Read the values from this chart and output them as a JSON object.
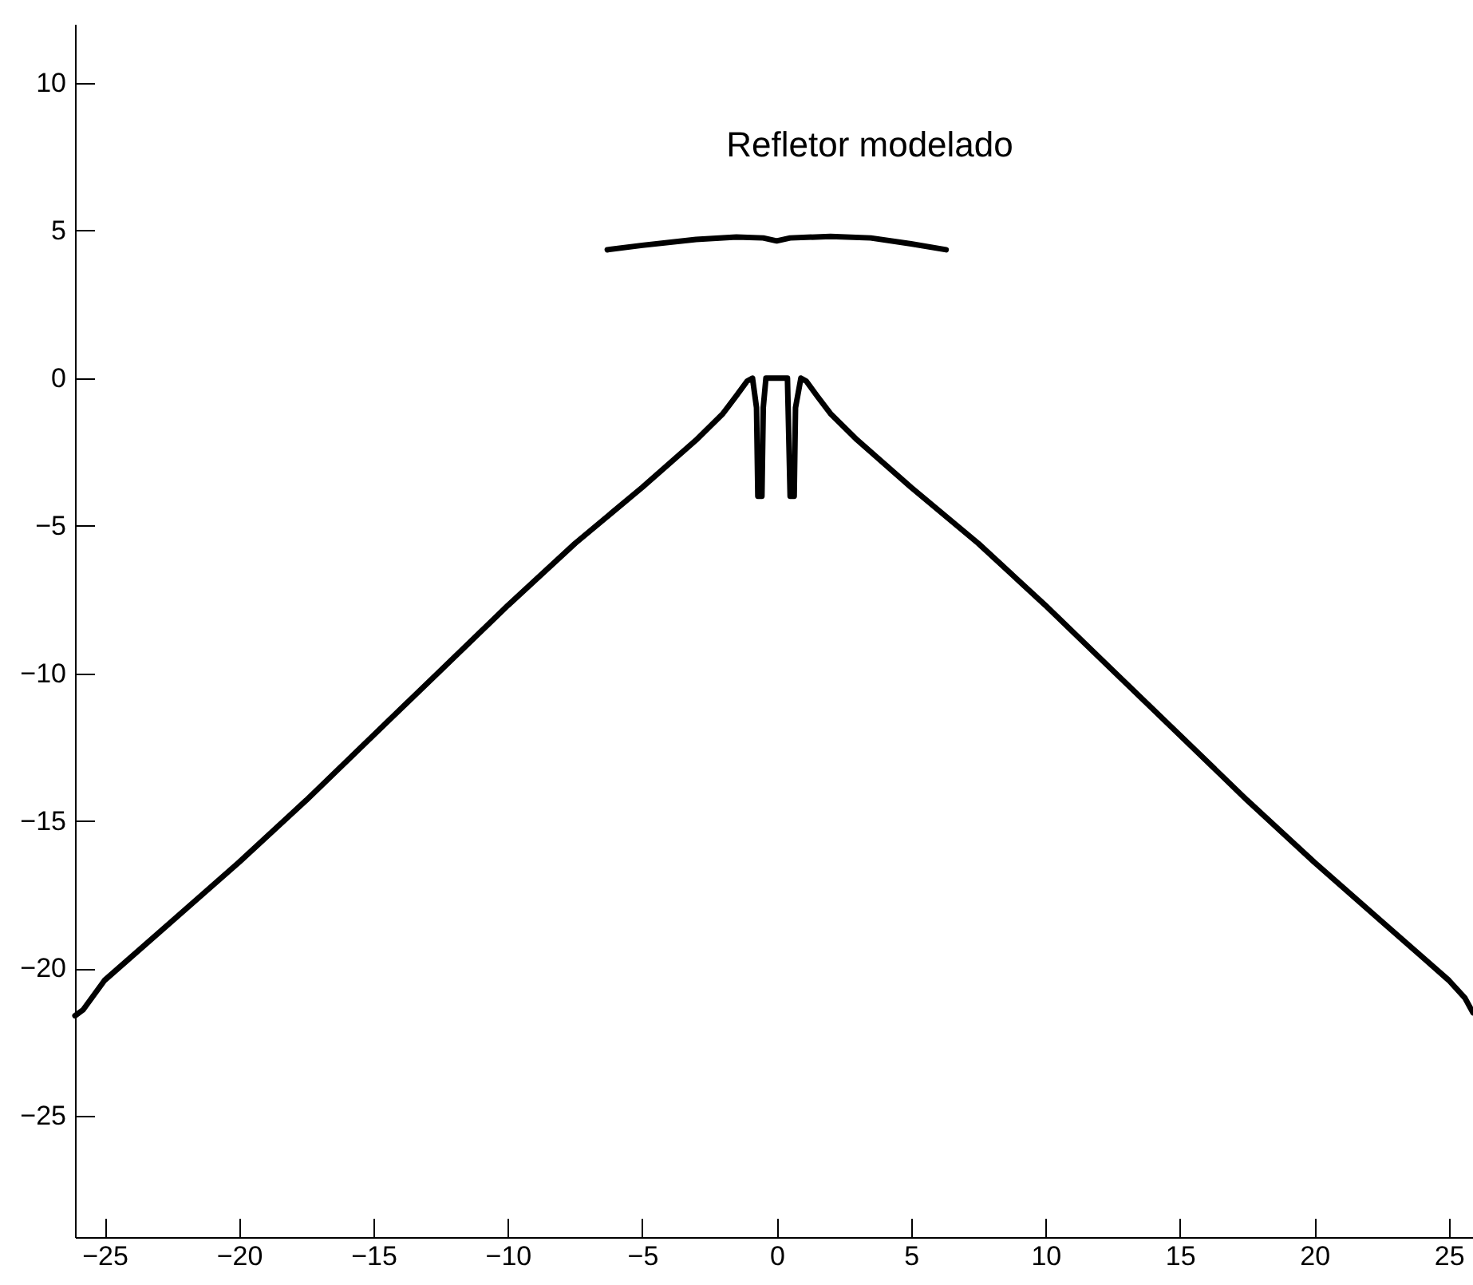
{
  "chart_data": {
    "type": "line",
    "xlim": [
      -26.1,
      25.9
    ],
    "ylim": [
      -29.1,
      12
    ],
    "xticks": [
      -25,
      -20,
      -15,
      -10,
      -5,
      0,
      5,
      10,
      15,
      20,
      25
    ],
    "yticks": [
      -25,
      -20,
      -15,
      -10,
      -5,
      0,
      5,
      10
    ],
    "grid": false,
    "marker": "none",
    "line_style": "solid",
    "annotations": [
      "Refletor modelado"
    ],
    "series": [
      {
        "color": "#000000",
        "x": [
          -6.3,
          -5,
          -3,
          -1.5,
          -0.5,
          0,
          0.5,
          2,
          3.5,
          5,
          6.3
        ],
        "values": [
          4.35,
          4.5,
          4.7,
          4.78,
          4.75,
          4.65,
          4.75,
          4.8,
          4.75,
          4.55,
          4.35
        ]
      },
      {
        "color": "#000000",
        "x": [
          -26.1,
          -25.8,
          -25,
          -22.5,
          -20,
          -17.5,
          -15,
          -12.5,
          -10,
          -7.5,
          -5,
          -3,
          -2,
          -1.5,
          -1.1,
          -0.9,
          -0.75,
          -0.7,
          -0.55,
          -0.5,
          -0.4,
          0.4,
          0.5,
          0.65,
          0.7,
          0.9,
          1.1,
          1.5,
          2,
          3,
          5,
          7.5,
          10,
          12.5,
          15,
          17.5,
          20,
          22.5,
          25,
          25.6,
          25.9
        ],
        "values": [
          -21.6,
          -21.4,
          -20.4,
          -18.4,
          -16.4,
          -14.3,
          -12.1,
          -9.9,
          -7.7,
          -5.6,
          -3.7,
          -2.1,
          -1.2,
          -0.6,
          -0.1,
          0,
          -1,
          -4,
          -4,
          -1,
          0,
          0,
          -4,
          -4,
          -1,
          0,
          -0.1,
          -0.6,
          -1.2,
          -2.1,
          -3.7,
          -5.6,
          -7.7,
          -9.9,
          -12.1,
          -14.3,
          -16.4,
          -18.4,
          -20.4,
          -21.0,
          -21.5
        ]
      }
    ]
  }
}
